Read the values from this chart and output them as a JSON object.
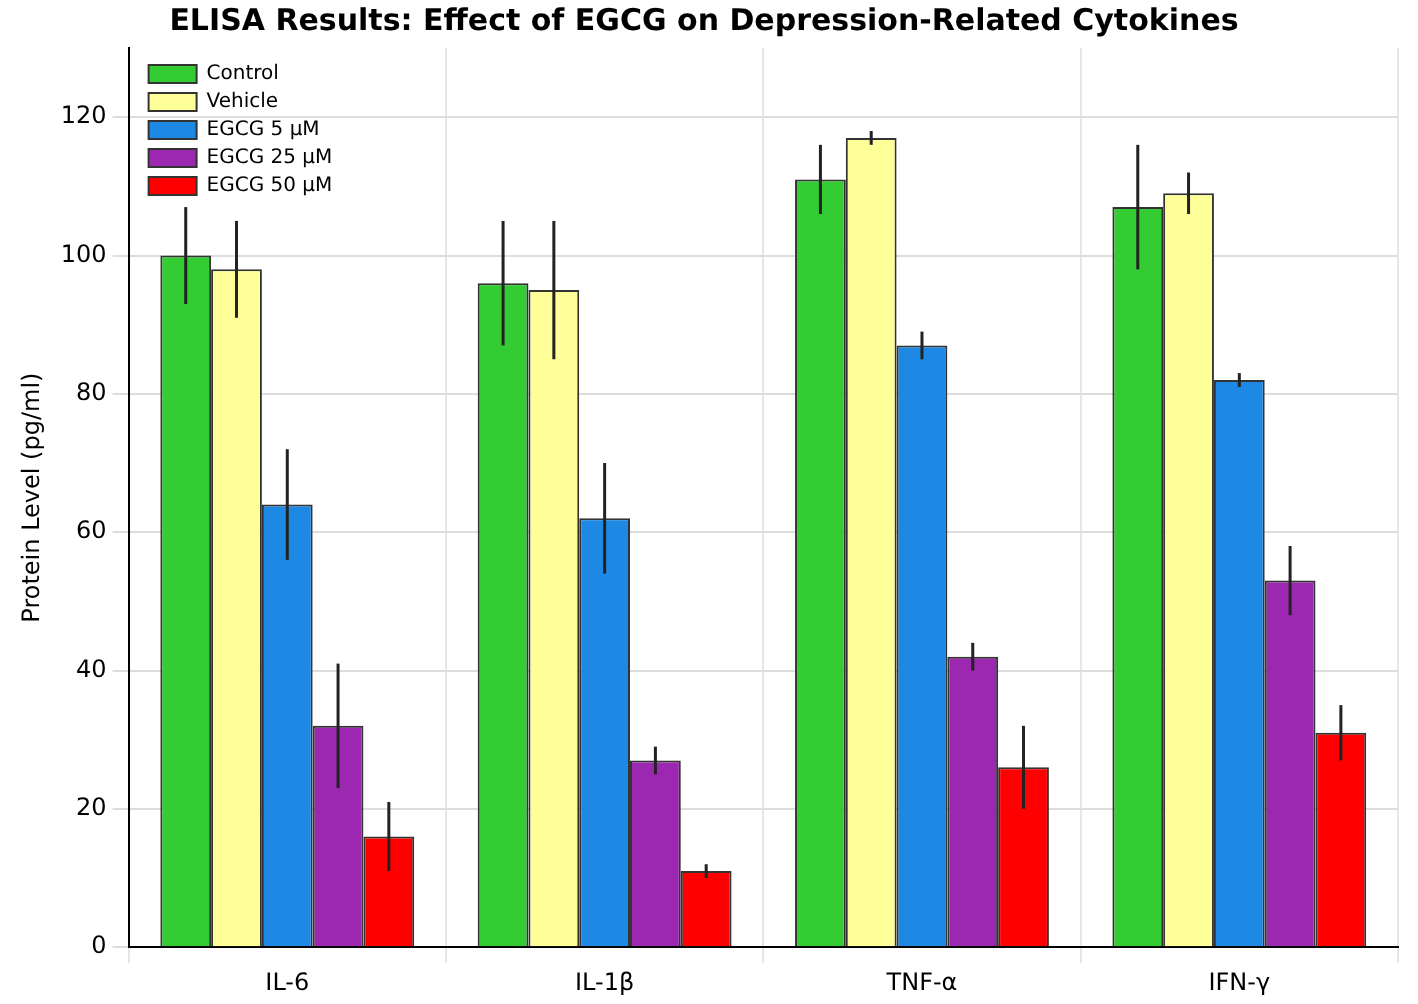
{
  "chart_data": {
    "type": "bar",
    "title": "ELISA Results: Effect of EGCG on Depression-Related Cytokines",
    "ylabel": "Protein Level (pg/ml)",
    "categories": [
      "IL-6",
      "IL-1β",
      "TNF-α",
      "IFN-γ"
    ],
    "series": [
      {
        "name": "Control",
        "color": "#33cc33",
        "values": [
          100,
          96,
          111,
          107
        ],
        "errors": [
          7,
          9,
          5,
          9
        ]
      },
      {
        "name": "Vehicle",
        "color": "#ffff99",
        "values": [
          98,
          95,
          117,
          109
        ],
        "errors": [
          7,
          10,
          1,
          3
        ]
      },
      {
        "name": "EGCG 5 μM",
        "color": "#1e88e5",
        "values": [
          64,
          62,
          87,
          82
        ],
        "errors": [
          8,
          8,
          2,
          1
        ]
      },
      {
        "name": "EGCG 25 μM",
        "color": "#9c27b0",
        "values": [
          32,
          27,
          42,
          53
        ],
        "errors": [
          9,
          2,
          2,
          5
        ]
      },
      {
        "name": "EGCG 50 μM",
        "color": "#ff0000",
        "values": [
          16,
          11,
          26,
          31
        ],
        "errors": [
          5,
          1,
          6,
          4
        ]
      }
    ],
    "ylim": [
      0,
      130
    ],
    "yticks": [
      0,
      20,
      40,
      60,
      80,
      100,
      120
    ],
    "grid": true,
    "legend": "top left"
  }
}
